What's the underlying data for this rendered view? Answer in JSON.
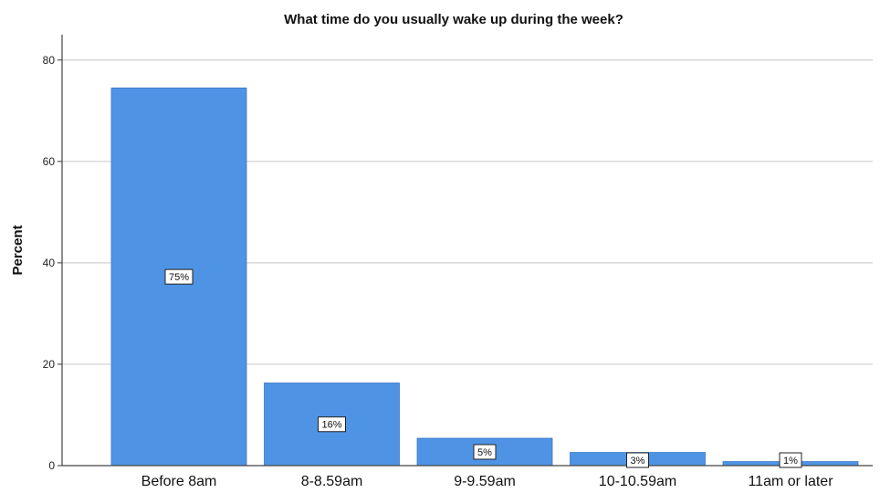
{
  "chart_data": {
    "type": "bar",
    "title": "What time do you usually wake up during the week?",
    "xlabel": "",
    "ylabel": "Percent",
    "categories": [
      "Before 8am",
      "8-8.59am",
      "9-9.59am",
      "10-10.59am",
      "11am or later"
    ],
    "values": [
      74.5,
      16.3,
      5.4,
      2.6,
      0.8
    ],
    "data_labels": [
      "75%",
      "16%",
      "5%",
      "3%",
      "1%"
    ],
    "ylim": [
      0,
      85
    ],
    "yticks": [
      "0",
      "20",
      "40",
      "60",
      "80"
    ],
    "grid": true,
    "legend": "none",
    "bar_color": "#4f94e4",
    "bar_edge_color": "#3a78c4"
  }
}
